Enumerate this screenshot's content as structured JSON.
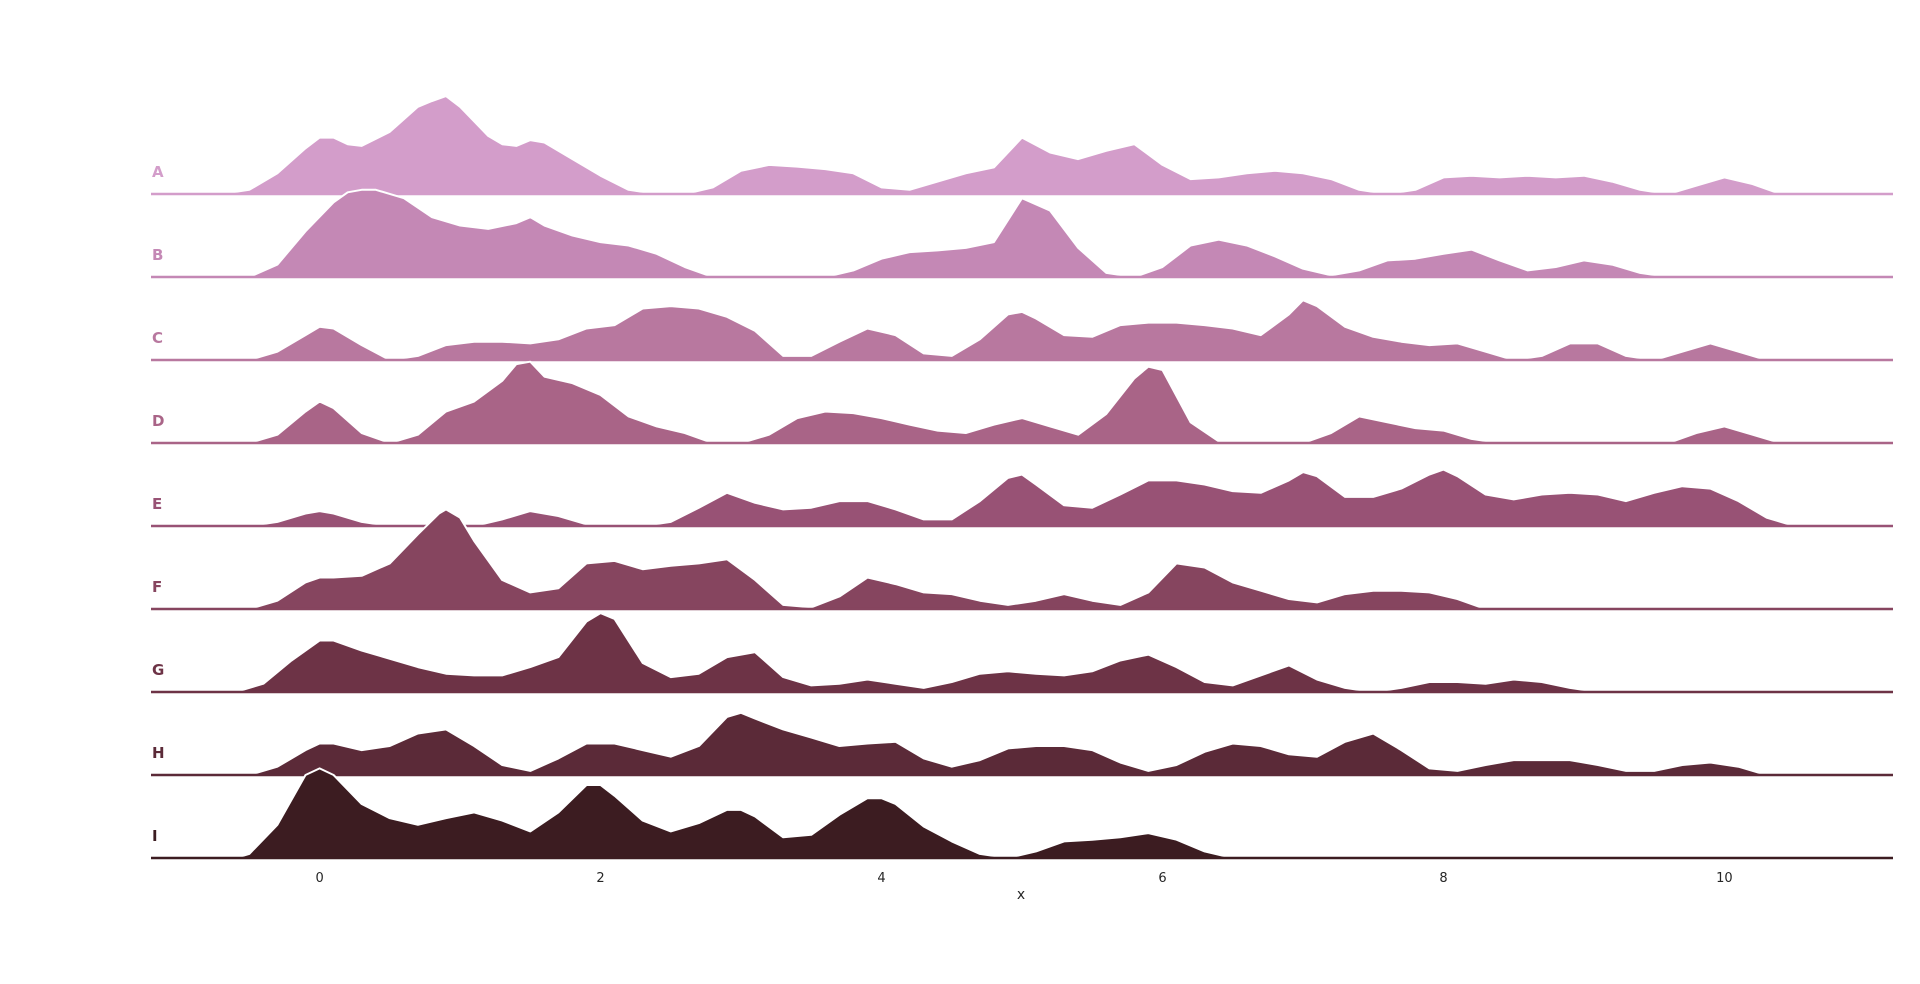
{
  "chart_data": {
    "type": "area",
    "subtype": "ridgeline",
    "title": "",
    "xlabel": "x",
    "ylabel": "",
    "xlim": [
      -1.2,
      11.2
    ],
    "xticks": [
      0,
      2,
      4,
      6,
      8,
      10
    ],
    "grid": false,
    "legend": "none",
    "series": [
      {
        "name": "A",
        "color": "#d39dca",
        "x": [
          -0.7,
          -0.5,
          -0.3,
          -0.1,
          0.0,
          0.1,
          0.2,
          0.3,
          0.5,
          0.7,
          0.8,
          0.9,
          1.0,
          1.2,
          1.3,
          1.4,
          1.5,
          1.6,
          1.8,
          2.0,
          2.2,
          2.4,
          2.6,
          2.8,
          3.0,
          3.2,
          3.4,
          3.6,
          3.8,
          4.0,
          4.2,
          4.4,
          4.6,
          4.8,
          5.0,
          5.2,
          5.4,
          5.6,
          5.8,
          6.0,
          6.2,
          6.4,
          6.6,
          6.8,
          7.0,
          7.2,
          7.4,
          7.6,
          7.8,
          8.0,
          8.2,
          8.4,
          8.6,
          8.8,
          9.0,
          9.2,
          9.4,
          9.6,
          9.8,
          10.0,
          10.2,
          10.4
        ],
        "y": [
          0.0,
          0.05,
          0.25,
          0.55,
          0.68,
          0.68,
          0.6,
          0.58,
          0.75,
          1.05,
          1.12,
          1.18,
          1.05,
          0.7,
          0.6,
          0.58,
          0.65,
          0.62,
          0.42,
          0.22,
          0.05,
          0.0,
          0.0,
          0.08,
          0.28,
          0.35,
          0.33,
          0.3,
          0.25,
          0.08,
          0.05,
          0.15,
          0.25,
          0.32,
          0.68,
          0.5,
          0.42,
          0.52,
          0.6,
          0.35,
          0.18,
          0.2,
          0.25,
          0.28,
          0.25,
          0.18,
          0.05,
          0.0,
          0.05,
          0.2,
          0.22,
          0.2,
          0.22,
          0.2,
          0.22,
          0.15,
          0.05,
          0.0,
          0.1,
          0.2,
          0.12,
          0.0
        ]
      },
      {
        "name": "B",
        "color": "#c488b5",
        "x": [
          -0.5,
          -0.3,
          -0.1,
          0.1,
          0.2,
          0.3,
          0.4,
          0.6,
          0.8,
          1.0,
          1.2,
          1.4,
          1.5,
          1.6,
          1.8,
          2.0,
          2.2,
          2.4,
          2.6,
          2.8,
          3.0,
          3.2,
          3.4,
          3.6,
          3.8,
          4.0,
          4.2,
          4.4,
          4.6,
          4.8,
          5.0,
          5.2,
          5.4,
          5.6,
          5.8,
          6.0,
          6.2,
          6.4,
          6.6,
          6.8,
          7.0,
          7.2,
          7.4,
          7.6,
          7.8,
          8.0,
          8.2,
          8.4,
          8.6,
          8.8,
          9.0,
          9.2,
          9.4,
          9.6,
          9.8,
          10.0,
          10.2,
          10.4
        ],
        "y": [
          0.0,
          0.15,
          0.55,
          0.9,
          1.02,
          1.05,
          1.05,
          0.95,
          0.72,
          0.62,
          0.58,
          0.65,
          0.72,
          0.62,
          0.5,
          0.42,
          0.38,
          0.28,
          0.12,
          0.0,
          0.0,
          0.0,
          0.0,
          0.0,
          0.08,
          0.22,
          0.3,
          0.32,
          0.35,
          0.42,
          0.95,
          0.8,
          0.35,
          0.05,
          0.0,
          0.12,
          0.38,
          0.45,
          0.38,
          0.25,
          0.1,
          0.02,
          0.08,
          0.2,
          0.22,
          0.28,
          0.33,
          0.2,
          0.08,
          0.12,
          0.2,
          0.15,
          0.05,
          0.0,
          0.0,
          0.0,
          0.0,
          0.0
        ]
      },
      {
        "name": "C",
        "color": "#b8789f",
        "x": [
          -0.5,
          -0.3,
          -0.1,
          0.0,
          0.1,
          0.3,
          0.5,
          0.7,
          0.9,
          1.1,
          1.3,
          1.5,
          1.7,
          1.9,
          2.1,
          2.3,
          2.5,
          2.7,
          2.9,
          3.1,
          3.3,
          3.5,
          3.7,
          3.9,
          4.1,
          4.3,
          4.5,
          4.7,
          4.9,
          5.0,
          5.1,
          5.3,
          5.5,
          5.7,
          5.9,
          6.1,
          6.3,
          6.5,
          6.7,
          6.9,
          7.0,
          7.1,
          7.3,
          7.5,
          7.7,
          7.9,
          8.1,
          8.3,
          8.5,
          8.7,
          8.9,
          9.1,
          9.3,
          9.5,
          9.7,
          9.9,
          10.1,
          10.3
        ],
        "y": [
          0.0,
          0.1,
          0.3,
          0.4,
          0.38,
          0.18,
          0.0,
          0.05,
          0.18,
          0.22,
          0.22,
          0.2,
          0.25,
          0.38,
          0.42,
          0.62,
          0.65,
          0.62,
          0.52,
          0.35,
          0.05,
          0.05,
          0.22,
          0.38,
          0.3,
          0.08,
          0.05,
          0.25,
          0.55,
          0.58,
          0.5,
          0.3,
          0.28,
          0.42,
          0.45,
          0.45,
          0.42,
          0.38,
          0.3,
          0.55,
          0.72,
          0.65,
          0.4,
          0.28,
          0.22,
          0.18,
          0.2,
          0.1,
          0.0,
          0.05,
          0.2,
          0.2,
          0.05,
          0.0,
          0.1,
          0.2,
          0.1,
          0.0
        ]
      },
      {
        "name": "D",
        "color": "#a96487",
        "x": [
          -0.5,
          -0.3,
          -0.1,
          0.0,
          0.1,
          0.3,
          0.5,
          0.7,
          0.9,
          1.1,
          1.3,
          1.4,
          1.5,
          1.6,
          1.8,
          2.0,
          2.2,
          2.4,
          2.6,
          2.8,
          3.0,
          3.2,
          3.4,
          3.6,
          3.8,
          4.0,
          4.2,
          4.4,
          4.6,
          4.8,
          5.0,
          5.2,
          5.4,
          5.6,
          5.8,
          5.9,
          6.0,
          6.2,
          6.4,
          6.6,
          6.8,
          7.0,
          7.2,
          7.4,
          7.6,
          7.8,
          8.0,
          8.2,
          8.4,
          8.6,
          8.8,
          9.0,
          9.2,
          9.4,
          9.6,
          9.8,
          10.0,
          10.2,
          10.4
        ],
        "y": [
          0.0,
          0.1,
          0.38,
          0.5,
          0.42,
          0.12,
          0.0,
          0.1,
          0.38,
          0.5,
          0.75,
          0.95,
          0.98,
          0.8,
          0.72,
          0.58,
          0.32,
          0.2,
          0.12,
          0.0,
          0.0,
          0.1,
          0.3,
          0.38,
          0.36,
          0.3,
          0.22,
          0.15,
          0.12,
          0.22,
          0.3,
          0.2,
          0.1,
          0.35,
          0.78,
          0.92,
          0.88,
          0.25,
          0.02,
          0.0,
          0.0,
          0.0,
          0.12,
          0.32,
          0.25,
          0.18,
          0.15,
          0.05,
          0.0,
          0.0,
          0.0,
          0.0,
          0.0,
          0.0,
          0.0,
          0.12,
          0.2,
          0.1,
          0.0
        ]
      },
      {
        "name": "E",
        "color": "#985275",
        "x": [
          -0.5,
          -0.3,
          -0.1,
          0.0,
          0.1,
          0.3,
          0.5,
          0.7,
          0.9,
          1.1,
          1.3,
          1.5,
          1.7,
          1.9,
          2.1,
          2.3,
          2.5,
          2.7,
          2.9,
          3.1,
          3.3,
          3.5,
          3.7,
          3.9,
          4.1,
          4.3,
          4.5,
          4.7,
          4.9,
          5.0,
          5.1,
          5.3,
          5.5,
          5.7,
          5.9,
          6.1,
          6.3,
          6.5,
          6.7,
          6.9,
          7.0,
          7.1,
          7.3,
          7.5,
          7.7,
          7.9,
          8.0,
          8.1,
          8.3,
          8.5,
          8.7,
          8.9,
          9.1,
          9.3,
          9.5,
          9.7,
          9.9,
          10.1,
          10.3,
          10.5
        ],
        "y": [
          0.0,
          0.05,
          0.15,
          0.18,
          0.15,
          0.05,
          0.0,
          0.0,
          0.0,
          0.0,
          0.08,
          0.18,
          0.12,
          0.02,
          0.0,
          0.0,
          0.05,
          0.22,
          0.4,
          0.28,
          0.2,
          0.22,
          0.3,
          0.3,
          0.2,
          0.08,
          0.08,
          0.3,
          0.58,
          0.62,
          0.5,
          0.25,
          0.22,
          0.38,
          0.55,
          0.55,
          0.5,
          0.42,
          0.4,
          0.55,
          0.65,
          0.6,
          0.35,
          0.35,
          0.45,
          0.62,
          0.68,
          0.6,
          0.38,
          0.32,
          0.38,
          0.4,
          0.38,
          0.3,
          0.4,
          0.48,
          0.45,
          0.3,
          0.1,
          0.0
        ]
      },
      {
        "name": "F",
        "color": "#86455f",
        "x": [
          -0.5,
          -0.3,
          -0.1,
          0.0,
          0.1,
          0.3,
          0.5,
          0.7,
          0.85,
          0.9,
          1.0,
          1.1,
          1.3,
          1.5,
          1.7,
          1.9,
          2.1,
          2.3,
          2.5,
          2.7,
          2.9,
          3.1,
          3.3,
          3.5,
          3.7,
          3.9,
          4.1,
          4.3,
          4.5,
          4.7,
          4.9,
          5.1,
          5.3,
          5.5,
          5.7,
          5.9,
          6.1,
          6.3,
          6.5,
          6.7,
          6.9,
          7.1,
          7.3,
          7.5,
          7.7,
          7.9,
          8.1,
          8.3,
          8.5,
          8.7,
          8.9
        ],
        "y": [
          0.0,
          0.1,
          0.32,
          0.38,
          0.38,
          0.4,
          0.55,
          0.9,
          1.15,
          1.2,
          1.1,
          0.82,
          0.35,
          0.2,
          0.25,
          0.55,
          0.58,
          0.48,
          0.52,
          0.55,
          0.6,
          0.35,
          0.05,
          0.02,
          0.15,
          0.38,
          0.3,
          0.2,
          0.18,
          0.1,
          0.05,
          0.1,
          0.18,
          0.1,
          0.05,
          0.2,
          0.55,
          0.5,
          0.32,
          0.22,
          0.12,
          0.08,
          0.18,
          0.22,
          0.22,
          0.2,
          0.12,
          0.0,
          0.0,
          0.0,
          0.0
        ]
      },
      {
        "name": "G",
        "color": "#6d3346",
        "x": [
          -0.6,
          -0.4,
          -0.2,
          0.0,
          0.1,
          0.3,
          0.5,
          0.7,
          0.9,
          1.1,
          1.3,
          1.5,
          1.7,
          1.9,
          2.0,
          2.1,
          2.3,
          2.5,
          2.7,
          2.9,
          3.1,
          3.3,
          3.5,
          3.7,
          3.9,
          4.1,
          4.3,
          4.5,
          4.7,
          4.9,
          5.1,
          5.3,
          5.5,
          5.7,
          5.9,
          6.1,
          6.3,
          6.5,
          6.7,
          6.9,
          7.1,
          7.3,
          7.5,
          7.7,
          7.9,
          8.1,
          8.3,
          8.5,
          8.7,
          8.9,
          9.1
        ],
        "y": [
          0.0,
          0.1,
          0.38,
          0.62,
          0.62,
          0.5,
          0.4,
          0.3,
          0.22,
          0.2,
          0.2,
          0.3,
          0.42,
          0.85,
          0.95,
          0.88,
          0.35,
          0.18,
          0.22,
          0.42,
          0.48,
          0.18,
          0.08,
          0.1,
          0.15,
          0.1,
          0.05,
          0.12,
          0.22,
          0.25,
          0.22,
          0.2,
          0.25,
          0.38,
          0.45,
          0.3,
          0.12,
          0.08,
          0.2,
          0.32,
          0.15,
          0.05,
          0.0,
          0.05,
          0.12,
          0.12,
          0.1,
          0.15,
          0.12,
          0.05,
          0.0
        ]
      },
      {
        "name": "H",
        "color": "#5b2a38",
        "x": [
          -0.5,
          -0.3,
          -0.1,
          0.0,
          0.1,
          0.3,
          0.5,
          0.7,
          0.9,
          1.1,
          1.3,
          1.5,
          1.7,
          1.9,
          2.1,
          2.3,
          2.5,
          2.7,
          2.9,
          3.0,
          3.1,
          3.3,
          3.5,
          3.7,
          3.9,
          4.1,
          4.3,
          4.5,
          4.7,
          4.9,
          5.1,
          5.3,
          5.5,
          5.7,
          5.9,
          6.1,
          6.3,
          6.5,
          6.7,
          6.9,
          7.1,
          7.3,
          7.5,
          7.7,
          7.9,
          8.1,
          8.3,
          8.5,
          8.7,
          8.9,
          9.1,
          9.3,
          9.5,
          9.7,
          9.9,
          10.1,
          10.3
        ],
        "y": [
          0.0,
          0.1,
          0.3,
          0.38,
          0.38,
          0.3,
          0.35,
          0.5,
          0.55,
          0.35,
          0.12,
          0.05,
          0.2,
          0.38,
          0.38,
          0.3,
          0.22,
          0.35,
          0.7,
          0.75,
          0.68,
          0.55,
          0.45,
          0.35,
          0.38,
          0.4,
          0.2,
          0.1,
          0.18,
          0.32,
          0.35,
          0.35,
          0.3,
          0.15,
          0.05,
          0.12,
          0.28,
          0.38,
          0.35,
          0.25,
          0.22,
          0.4,
          0.5,
          0.3,
          0.08,
          0.05,
          0.12,
          0.18,
          0.18,
          0.18,
          0.12,
          0.05,
          0.05,
          0.12,
          0.15,
          0.1,
          0.0
        ]
      },
      {
        "name": "I",
        "color": "#3c1c21",
        "x": [
          -0.6,
          -0.5,
          -0.3,
          -0.1,
          0.0,
          0.1,
          0.3,
          0.5,
          0.7,
          0.9,
          1.1,
          1.3,
          1.5,
          1.7,
          1.9,
          2.0,
          2.1,
          2.3,
          2.5,
          2.7,
          2.9,
          3.0,
          3.1,
          3.3,
          3.5,
          3.7,
          3.9,
          4.0,
          4.1,
          4.3,
          4.5,
          4.7,
          4.9,
          5.1,
          5.3,
          5.5,
          5.7,
          5.9,
          6.1,
          6.3,
          6.5
        ],
        "y": [
          0.0,
          0.05,
          0.4,
          1.0,
          1.08,
          1.0,
          0.65,
          0.48,
          0.4,
          0.48,
          0.55,
          0.45,
          0.32,
          0.55,
          0.88,
          0.88,
          0.75,
          0.45,
          0.32,
          0.42,
          0.58,
          0.58,
          0.5,
          0.25,
          0.28,
          0.52,
          0.72,
          0.72,
          0.65,
          0.38,
          0.2,
          0.05,
          0.0,
          0.08,
          0.2,
          0.22,
          0.25,
          0.3,
          0.22,
          0.08,
          0.0
        ]
      }
    ]
  }
}
